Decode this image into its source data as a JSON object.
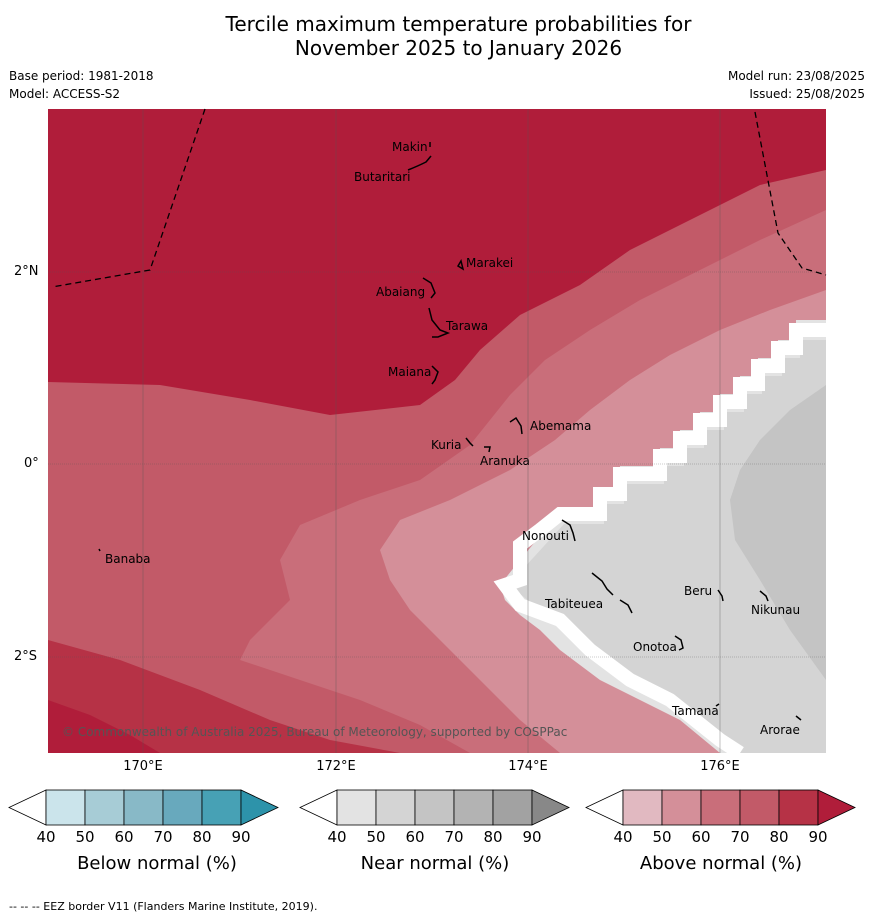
{
  "title_line1": "Tercile maximum temperature probabilities for",
  "title_line2": "November 2025 to January 2026",
  "meta": {
    "base_period": "Base period: 1981-2018",
    "model": "Model: ACCESS-S2",
    "model_run": "Model run: 23/08/2025",
    "issued": "Issued: 25/08/2025"
  },
  "map": {
    "lat_ticks": [
      "2°N",
      "0°",
      "2°S"
    ],
    "lon_ticks": [
      "170°E",
      "172°E",
      "174°E",
      "176°E"
    ],
    "copyright": "© Commonwealth of Australia 2025, Bureau of Meteorology, supported by COSPPac",
    "islands": [
      "Makin",
      "Butaritari",
      "Marakei",
      "Abaiang",
      "Tarawa",
      "Maiana",
      "Abemama",
      "Kuria",
      "Aranuka",
      "Banaba",
      "Nonouti",
      "Tabiteuea",
      "Beru",
      "Nikunau",
      "Onotoa",
      "Tamana",
      "Arorae"
    ]
  },
  "colorbars": [
    {
      "label": "Below normal (%)",
      "ticks": [
        "40",
        "50",
        "60",
        "70",
        "80",
        "90"
      ],
      "colors": [
        "#ffffff",
        "#cbe4eb",
        "#a7ccd6",
        "#88b9c7",
        "#68a9bd",
        "#47a1b5",
        "#2d93aa"
      ]
    },
    {
      "label": "Near normal (%)",
      "ticks": [
        "40",
        "50",
        "60",
        "70",
        "80",
        "90"
      ],
      "colors": [
        "#ffffff",
        "#e3e3e3",
        "#d4d4d4",
        "#c4c4c4",
        "#b3b3b3",
        "#a2a2a2",
        "#888888"
      ]
    },
    {
      "label": "Above normal (%)",
      "ticks": [
        "40",
        "50",
        "60",
        "70",
        "80",
        "90"
      ],
      "colors": [
        "#ffffff",
        "#e1b9c1",
        "#d48f99",
        "#c96e7a",
        "#c25a68",
        "#b63246",
        "#b01d3a"
      ]
    }
  ],
  "footer": "--  --  -- EEZ border V11 (Flanders Marine Institute, 2019)."
}
